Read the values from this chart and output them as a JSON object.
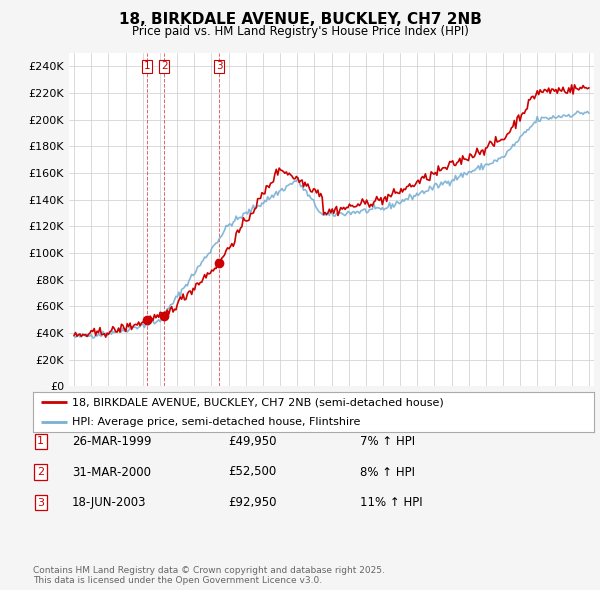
{
  "title": "18, BIRKDALE AVENUE, BUCKLEY, CH7 2NB",
  "subtitle": "Price paid vs. HM Land Registry's House Price Index (HPI)",
  "legend_line1": "18, BIRKDALE AVENUE, BUCKLEY, CH7 2NB (semi-detached house)",
  "legend_line2": "HPI: Average price, semi-detached house, Flintshire",
  "footer1": "Contains HM Land Registry data © Crown copyright and database right 2025.",
  "footer2": "This data is licensed under the Open Government Licence v3.0.",
  "transactions": [
    {
      "num": 1,
      "date": "26-MAR-1999",
      "price": "£49,950",
      "hpi": "7% ↑ HPI",
      "year": 1999.23,
      "value": 49950
    },
    {
      "num": 2,
      "date": "31-MAR-2000",
      "price": "£52,500",
      "hpi": "8% ↑ HPI",
      "year": 2000.25,
      "value": 52500
    },
    {
      "num": 3,
      "date": "18-JUN-2003",
      "price": "£92,950",
      "hpi": "11% ↑ HPI",
      "year": 2003.46,
      "value": 92950
    }
  ],
  "red_color": "#cc0000",
  "blue_color": "#7ab0d4",
  "ylim": [
    0,
    250000
  ],
  "yticks": [
    0,
    20000,
    40000,
    60000,
    80000,
    100000,
    120000,
    140000,
    160000,
    180000,
    200000,
    220000,
    240000
  ],
  "start_year": 1995,
  "end_year": 2025,
  "background_color": "#f5f5f5",
  "plot_bg": "#ffffff"
}
